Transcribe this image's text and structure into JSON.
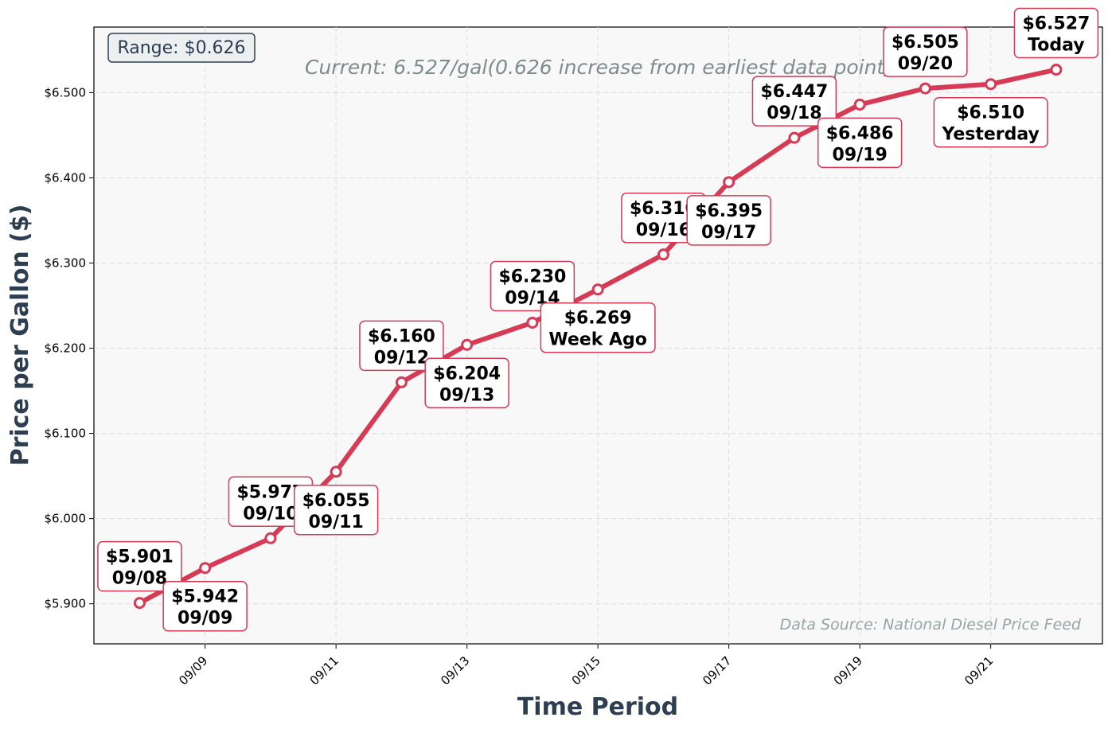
{
  "chart_data": {
    "type": "line",
    "subtitle": "Current: 6.527/gal(0.626 increase from earliest data point)",
    "xlabel": "Time Period",
    "ylabel": "Price per Gallon ($)",
    "range_label": "Range: $0.626",
    "source_note": "Data Source: National Diesel Price Feed",
    "x_ticks": [
      "09/09",
      "09/11",
      "09/13",
      "09/15",
      "09/17",
      "09/19",
      "09/21"
    ],
    "y_ticks": [
      "$5.900",
      "$6.000",
      "$6.100",
      "$6.200",
      "$6.300",
      "$6.400",
      "$6.500"
    ],
    "y_tick_values": [
      5.9,
      6.0,
      6.1,
      6.2,
      6.3,
      6.4,
      6.5
    ],
    "ylim": [
      5.853,
      6.577
    ],
    "xlim": [
      "09/07",
      "09/22"
    ],
    "grid": true,
    "colors": {
      "line": "#d63a55",
      "marker_fill": "#ffffff",
      "plot_bg": "#f8f8f8",
      "range_box": "#ecf0f1"
    },
    "x": [
      "09/08",
      "09/09",
      "09/10",
      "09/11",
      "09/12",
      "09/13",
      "09/14",
      "09/15",
      "09/16",
      "09/17",
      "09/18",
      "09/19",
      "09/20",
      "09/21",
      "09/22"
    ],
    "values": [
      5.901,
      5.942,
      5.977,
      6.055,
      6.16,
      6.204,
      6.23,
      6.269,
      6.31,
      6.395,
      6.447,
      6.486,
      6.505,
      6.51,
      6.527
    ],
    "annotations": [
      {
        "price": "$5.901",
        "label": "09/08",
        "pos": "above"
      },
      {
        "price": "$5.942",
        "label": "09/09",
        "pos": "below"
      },
      {
        "price": "$5.977",
        "label": "09/10",
        "pos": "above"
      },
      {
        "price": "$6.055",
        "label": "09/11",
        "pos": "below"
      },
      {
        "price": "$6.160",
        "label": "09/12",
        "pos": "above"
      },
      {
        "price": "$6.204",
        "label": "09/13",
        "pos": "below"
      },
      {
        "price": "$6.230",
        "label": "09/14",
        "pos": "above"
      },
      {
        "price": "$6.269",
        "label": "Week Ago",
        "pos": "below"
      },
      {
        "price": "$6.310",
        "label": "09/16",
        "pos": "above"
      },
      {
        "price": "$6.395",
        "label": "09/17",
        "pos": "below"
      },
      {
        "price": "$6.447",
        "label": "09/18",
        "pos": "above"
      },
      {
        "price": "$6.486",
        "label": "09/19",
        "pos": "below"
      },
      {
        "price": "$6.505",
        "label": "09/20",
        "pos": "above"
      },
      {
        "price": "$6.510",
        "label": "Yesterday",
        "pos": "below"
      },
      {
        "price": "$6.527",
        "label": "Today",
        "pos": "above"
      }
    ]
  }
}
